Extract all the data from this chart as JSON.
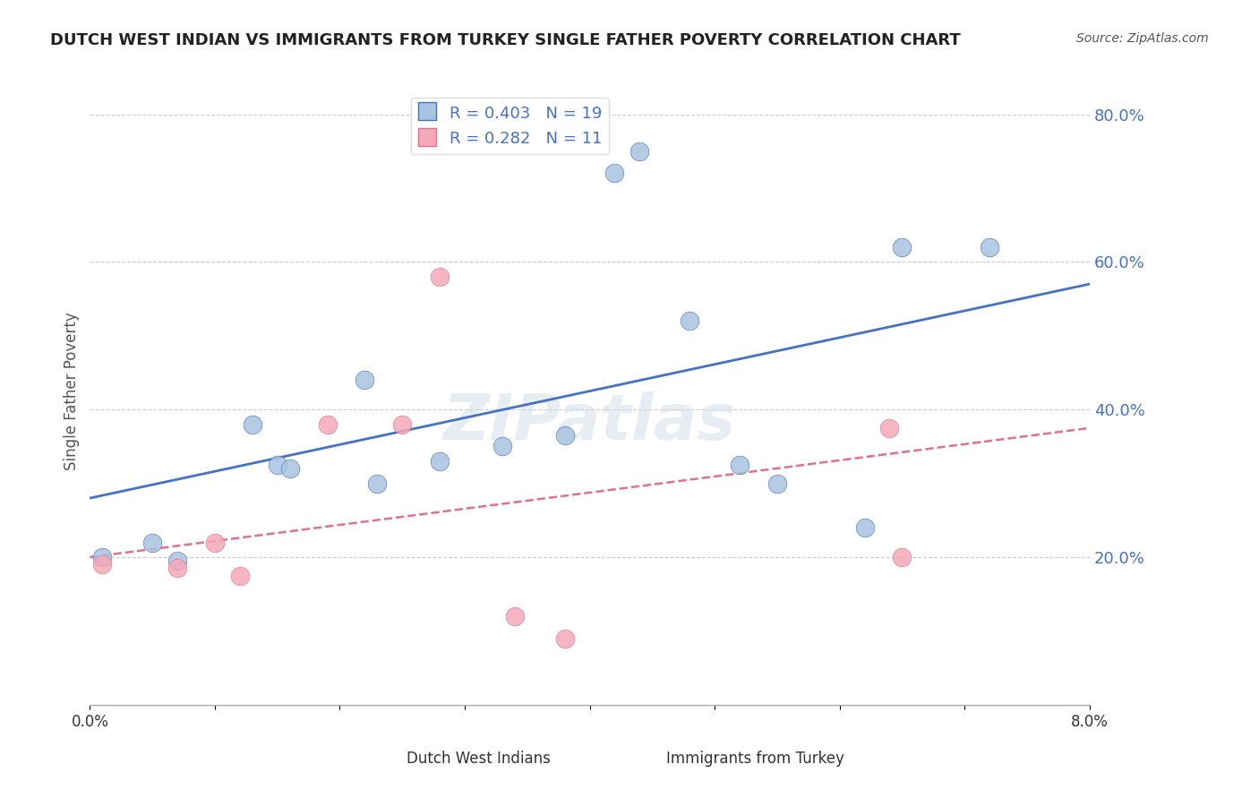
{
  "title": "DUTCH WEST INDIAN VS IMMIGRANTS FROM TURKEY SINGLE FATHER POVERTY CORRELATION CHART",
  "source": "Source: ZipAtlas.com",
  "xlabel": "",
  "ylabel": "Single Father Poverty",
  "xlim": [
    0.0,
    0.08
  ],
  "ylim": [
    0.0,
    0.85
  ],
  "right_yticks": [
    0.2,
    0.4,
    0.6,
    0.8
  ],
  "right_yticklabels": [
    "20.0%",
    "40.0%",
    "60.0%",
    "80.0%"
  ],
  "xticks": [
    0.0,
    0.01,
    0.02,
    0.03,
    0.04,
    0.05,
    0.06,
    0.07,
    0.08
  ],
  "xticklabels": [
    "0.0%",
    "",
    "",
    "",
    "",
    "",
    "",
    "",
    "8.0%"
  ],
  "blue_R": 0.403,
  "blue_N": 19,
  "pink_R": 0.282,
  "pink_N": 11,
  "blue_color": "#a8c4e0",
  "pink_color": "#f4a8b8",
  "blue_line_color": "#4472c4",
  "pink_line_color": "#e07090",
  "right_axis_color": "#4472c4",
  "watermark": "ZIPatlas",
  "legend_label_blue": "Dutch West Indians",
  "legend_label_pink": "Immigrants from Turkey",
  "blue_x": [
    0.001,
    0.005,
    0.007,
    0.013,
    0.015,
    0.016,
    0.022,
    0.023,
    0.028,
    0.033,
    0.038,
    0.042,
    0.044,
    0.048,
    0.052,
    0.055,
    0.062,
    0.065,
    0.072
  ],
  "blue_y": [
    0.2,
    0.22,
    0.195,
    0.38,
    0.325,
    0.32,
    0.44,
    0.3,
    0.33,
    0.35,
    0.365,
    0.72,
    0.75,
    0.52,
    0.325,
    0.3,
    0.24,
    0.62,
    0.62
  ],
  "pink_x": [
    0.001,
    0.007,
    0.01,
    0.012,
    0.019,
    0.025,
    0.028,
    0.034,
    0.038,
    0.064,
    0.065
  ],
  "pink_y": [
    0.19,
    0.185,
    0.22,
    0.175,
    0.38,
    0.38,
    0.58,
    0.12,
    0.09,
    0.375,
    0.2
  ],
  "blue_trendline_x": [
    0.0,
    0.08
  ],
  "blue_trendline_y": [
    0.28,
    0.57
  ],
  "pink_trendline_x": [
    0.0,
    0.08
  ],
  "pink_trendline_y": [
    0.2,
    0.375
  ]
}
